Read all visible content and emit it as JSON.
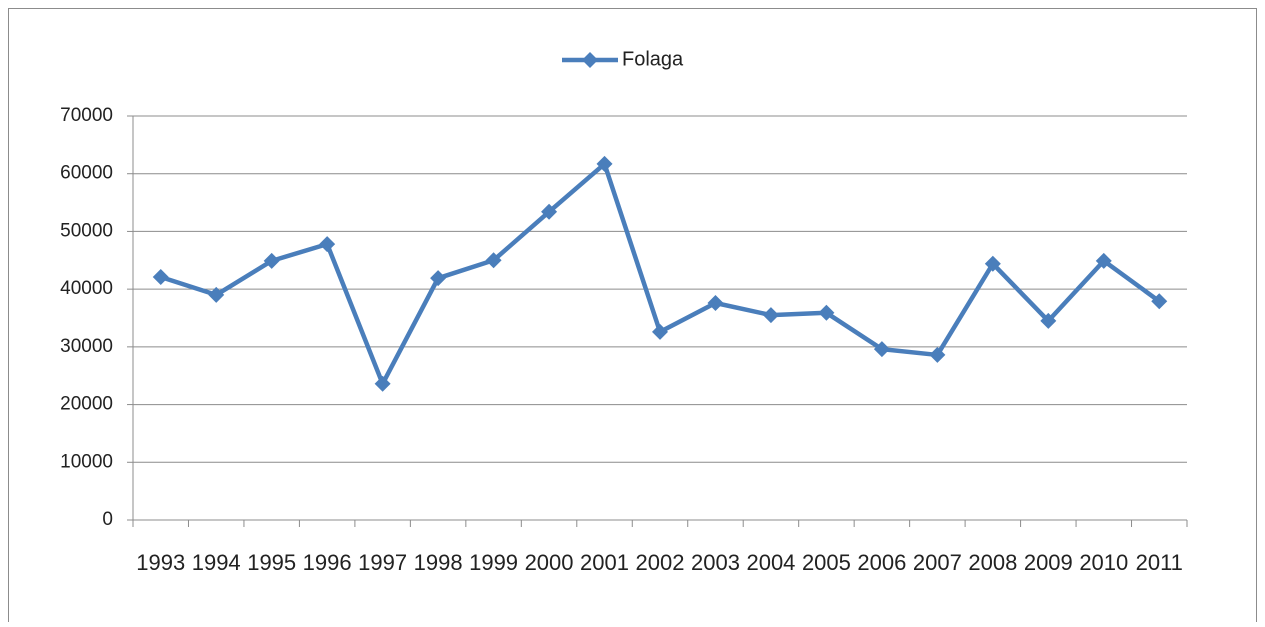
{
  "chart_data": {
    "type": "line",
    "categories": [
      "1993",
      "1994",
      "1995",
      "1996",
      "1997",
      "1998",
      "1999",
      "2000",
      "2001",
      "2002",
      "2003",
      "2004",
      "2005",
      "2006",
      "2007",
      "2008",
      "2009",
      "2010",
      "2011"
    ],
    "series": [
      {
        "name": "Folaga",
        "color": "#4a7ebb",
        "values": [
          42100,
          39000,
          44900,
          47800,
          23600,
          41900,
          45000,
          53400,
          61700,
          32600,
          37600,
          35500,
          35900,
          29600,
          28600,
          44400,
          34500,
          44900,
          37900
        ]
      }
    ],
    "ylim": [
      0,
      70000
    ],
    "yticks": [
      0,
      10000,
      20000,
      30000,
      40000,
      50000,
      60000,
      70000
    ],
    "grid": true,
    "legend": "top"
  }
}
